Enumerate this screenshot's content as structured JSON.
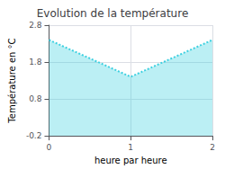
{
  "chart_data": {
    "type": "line",
    "title": "Evolution de la température",
    "xlabel": "heure par heure",
    "ylabel": "Température en °C",
    "x": [
      0,
      1,
      2
    ],
    "values": [
      2.4,
      1.4,
      2.4
    ],
    "color": "#3dd0e0",
    "line_style": "dotted",
    "xlim": [
      0,
      2
    ],
    "xticks": [
      0,
      1,
      2
    ],
    "ylim": [
      -0.2,
      2.8
    ],
    "yticks": [
      -0.2,
      0.8,
      1.8,
      2.8
    ],
    "grid": true
  }
}
